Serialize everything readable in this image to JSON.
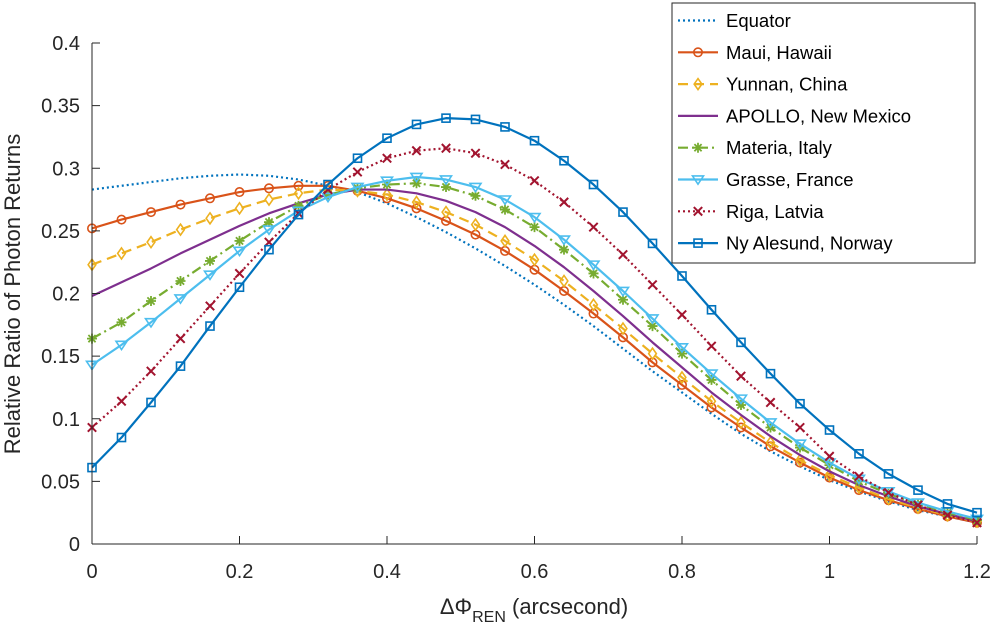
{
  "chart_data": {
    "type": "line",
    "title": "",
    "xlabel": {
      "symbol": "ΔΦ",
      "subscript": "REN",
      "suffix": " (arcsecond)"
    },
    "ylabel": "Relative Ratio of Photon Returns",
    "xlim": [
      0,
      1.2
    ],
    "ylim": [
      0,
      0.4
    ],
    "xticks": [
      0,
      0.2,
      0.4,
      0.6,
      0.8,
      1,
      1.2
    ],
    "xtick_labels": [
      "0",
      "0.2",
      "0.4",
      "0.6",
      "0.8",
      "1",
      "1.2"
    ],
    "yticks": [
      0,
      0.05,
      0.1,
      0.15,
      0.2,
      0.25,
      0.3,
      0.35,
      0.4
    ],
    "ytick_labels": [
      "0",
      "0.05",
      "0.1",
      "0.15",
      "0.2",
      "0.25",
      "0.3",
      "0.35",
      "0.4"
    ],
    "grid": false,
    "legend_position": "top-right",
    "series": [
      {
        "name": "Equator",
        "color": "#0072BD",
        "dash": "dotted",
        "marker": "none",
        "x": [
          0,
          0.04,
          0.08,
          0.12,
          0.16,
          0.2,
          0.24,
          0.28,
          0.32,
          0.36,
          0.4,
          0.44,
          0.48,
          0.52,
          0.56,
          0.6,
          0.64,
          0.68,
          0.72,
          0.76,
          0.8,
          0.84,
          0.88,
          0.92,
          0.96,
          1,
          1.04,
          1.08,
          1.12,
          1.16,
          1.2
        ],
        "y": [
          0.283,
          0.286,
          0.289,
          0.292,
          0.294,
          0.295,
          0.294,
          0.291,
          0.286,
          0.281,
          0.272,
          0.261,
          0.249,
          0.236,
          0.222,
          0.207,
          0.191,
          0.174,
          0.156,
          0.138,
          0.121,
          0.104,
          0.088,
          0.074,
          0.062,
          0.051,
          0.042,
          0.034,
          0.027,
          0.022,
          0.017
        ]
      },
      {
        "name": "Maui, Hawaii",
        "color": "#D95319",
        "dash": "solid",
        "marker": "circle",
        "x": [
          0,
          0.04,
          0.08,
          0.12,
          0.16,
          0.2,
          0.24,
          0.28,
          0.32,
          0.36,
          0.4,
          0.44,
          0.48,
          0.52,
          0.56,
          0.6,
          0.64,
          0.68,
          0.72,
          0.76,
          0.8,
          0.84,
          0.88,
          0.92,
          0.96,
          1,
          1.04,
          1.08,
          1.12,
          1.16,
          1.2
        ],
        "y": [
          0.252,
          0.259,
          0.265,
          0.271,
          0.276,
          0.281,
          0.284,
          0.286,
          0.286,
          0.282,
          0.276,
          0.268,
          0.258,
          0.247,
          0.234,
          0.219,
          0.202,
          0.184,
          0.165,
          0.145,
          0.127,
          0.109,
          0.093,
          0.078,
          0.065,
          0.053,
          0.043,
          0.035,
          0.028,
          0.022,
          0.017
        ]
      },
      {
        "name": "Yunnan, China",
        "color": "#EDB120",
        "dash": "dashed",
        "marker": "diamond",
        "x": [
          0,
          0.04,
          0.08,
          0.12,
          0.16,
          0.2,
          0.24,
          0.28,
          0.32,
          0.36,
          0.4,
          0.44,
          0.48,
          0.52,
          0.56,
          0.6,
          0.64,
          0.68,
          0.72,
          0.76,
          0.8,
          0.84,
          0.88,
          0.92,
          0.96,
          1,
          1.04,
          1.08,
          1.12,
          1.16,
          1.2
        ],
        "y": [
          0.223,
          0.232,
          0.241,
          0.251,
          0.26,
          0.268,
          0.275,
          0.28,
          0.283,
          0.282,
          0.279,
          0.273,
          0.265,
          0.255,
          0.242,
          0.227,
          0.21,
          0.191,
          0.172,
          0.152,
          0.133,
          0.114,
          0.097,
          0.081,
          0.067,
          0.055,
          0.045,
          0.036,
          0.029,
          0.023,
          0.018
        ]
      },
      {
        "name": "APOLLO, New Mexico",
        "color": "#7E2F8E",
        "dash": "solid",
        "marker": "none",
        "x": [
          0,
          0.04,
          0.08,
          0.12,
          0.16,
          0.2,
          0.24,
          0.28,
          0.32,
          0.36,
          0.4,
          0.44,
          0.48,
          0.52,
          0.56,
          0.6,
          0.64,
          0.68,
          0.72,
          0.76,
          0.8,
          0.84,
          0.88,
          0.92,
          0.96,
          1,
          1.04,
          1.08,
          1.12,
          1.16,
          1.2
        ],
        "y": [
          0.198,
          0.209,
          0.22,
          0.232,
          0.243,
          0.254,
          0.264,
          0.272,
          0.279,
          0.283,
          0.283,
          0.28,
          0.274,
          0.265,
          0.253,
          0.238,
          0.221,
          0.202,
          0.182,
          0.161,
          0.141,
          0.121,
          0.103,
          0.086,
          0.071,
          0.058,
          0.047,
          0.038,
          0.03,
          0.024,
          0.018
        ]
      },
      {
        "name": "Materia, Italy",
        "color": "#77AC30",
        "dash": "dashdot",
        "marker": "asterisk",
        "x": [
          0,
          0.04,
          0.08,
          0.12,
          0.16,
          0.2,
          0.24,
          0.28,
          0.32,
          0.36,
          0.4,
          0.44,
          0.48,
          0.52,
          0.56,
          0.6,
          0.64,
          0.68,
          0.72,
          0.76,
          0.8,
          0.84,
          0.88,
          0.92,
          0.96,
          1,
          1.04,
          1.08,
          1.12,
          1.16,
          1.2
        ],
        "y": [
          0.164,
          0.177,
          0.194,
          0.21,
          0.226,
          0.242,
          0.257,
          0.27,
          0.279,
          0.284,
          0.287,
          0.288,
          0.285,
          0.278,
          0.267,
          0.253,
          0.235,
          0.216,
          0.195,
          0.174,
          0.152,
          0.131,
          0.111,
          0.093,
          0.077,
          0.063,
          0.05,
          0.04,
          0.032,
          0.025,
          0.019
        ]
      },
      {
        "name": "Grasse, France",
        "color": "#4DBEEE",
        "dash": "solid",
        "marker": "triangle-down",
        "x": [
          0,
          0.04,
          0.08,
          0.12,
          0.16,
          0.2,
          0.24,
          0.28,
          0.32,
          0.36,
          0.4,
          0.44,
          0.48,
          0.52,
          0.56,
          0.6,
          0.64,
          0.68,
          0.72,
          0.76,
          0.8,
          0.84,
          0.88,
          0.92,
          0.96,
          1,
          1.04,
          1.08,
          1.12,
          1.16,
          1.2
        ],
        "y": [
          0.143,
          0.159,
          0.177,
          0.196,
          0.215,
          0.234,
          0.251,
          0.266,
          0.277,
          0.285,
          0.29,
          0.293,
          0.291,
          0.285,
          0.275,
          0.261,
          0.243,
          0.223,
          0.202,
          0.18,
          0.157,
          0.136,
          0.116,
          0.097,
          0.08,
          0.065,
          0.052,
          0.042,
          0.033,
          0.026,
          0.02
        ]
      },
      {
        "name": "Riga, Latvia",
        "color": "#A2142F",
        "dash": "dotted",
        "marker": "cross",
        "x": [
          0,
          0.04,
          0.08,
          0.12,
          0.16,
          0.2,
          0.24,
          0.28,
          0.32,
          0.36,
          0.4,
          0.44,
          0.48,
          0.52,
          0.56,
          0.6,
          0.64,
          0.68,
          0.72,
          0.76,
          0.8,
          0.84,
          0.88,
          0.92,
          0.96,
          1,
          1.04,
          1.08,
          1.12,
          1.16,
          1.2
        ],
        "y": [
          0.093,
          0.114,
          0.138,
          0.164,
          0.19,
          0.216,
          0.241,
          0.264,
          0.283,
          0.297,
          0.308,
          0.314,
          0.316,
          0.312,
          0.303,
          0.29,
          0.273,
          0.253,
          0.231,
          0.207,
          0.183,
          0.158,
          0.134,
          0.113,
          0.093,
          0.07,
          0.054,
          0.041,
          0.031,
          0.023,
          0.017
        ]
      },
      {
        "name": "Ny Alesund, Norway",
        "color": "#0072BD",
        "dash": "solid",
        "marker": "square",
        "x": [
          0,
          0.04,
          0.08,
          0.12,
          0.16,
          0.2,
          0.24,
          0.28,
          0.32,
          0.36,
          0.4,
          0.44,
          0.48,
          0.52,
          0.56,
          0.6,
          0.64,
          0.68,
          0.72,
          0.76,
          0.8,
          0.84,
          0.88,
          0.92,
          0.96,
          1,
          1.04,
          1.08,
          1.12,
          1.16,
          1.2
        ],
        "y": [
          0.061,
          0.085,
          0.113,
          0.142,
          0.174,
          0.205,
          0.235,
          0.263,
          0.287,
          0.308,
          0.324,
          0.335,
          0.34,
          0.339,
          0.333,
          0.322,
          0.306,
          0.287,
          0.265,
          0.24,
          0.214,
          0.187,
          0.161,
          0.136,
          0.112,
          0.091,
          0.072,
          0.056,
          0.043,
          0.032,
          0.025
        ]
      }
    ]
  }
}
